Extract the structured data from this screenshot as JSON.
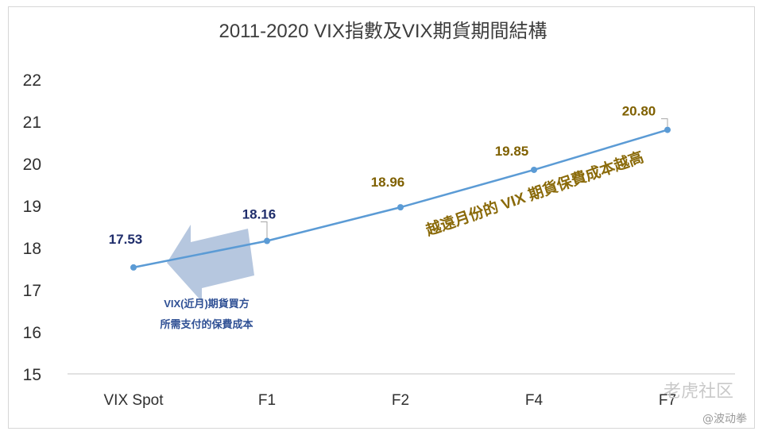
{
  "chart_data": {
    "type": "line",
    "title": "2011-2020 VIX指數及VIX期貨期間結構",
    "categories": [
      "VIX Spot",
      "F1",
      "F2",
      "F4",
      "F7"
    ],
    "series": [
      {
        "values": [
          17.53,
          18.16,
          18.96,
          19.85,
          20.8
        ],
        "labels": [
          "17.53",
          "18.16",
          "18.96",
          "19.85",
          "20.80"
        ],
        "color": "#5b9bd5"
      }
    ],
    "ylim": [
      15,
      22
    ],
    "yticks": [
      "15",
      "16",
      "17",
      "18",
      "19",
      "20",
      "21",
      "22"
    ],
    "grid": false,
    "label_colors": {
      "near": "#1f2d6b",
      "far": "#7f6000"
    },
    "annotations": {
      "arrow_text": [
        "VIX(近月)期貨買方",
        "所需支付的保費成本"
      ],
      "slope_text": "越遠月份的 VIX 期貨保費成本越高"
    },
    "colors": {
      "axis": "#d9d9d9",
      "arrow": "#a9bdd9",
      "annotation_blue": "#2e4f94",
      "annotation_gold": "#8a6a09"
    }
  },
  "watermark": {
    "brand": "老虎社区",
    "user": "@波动拳"
  }
}
